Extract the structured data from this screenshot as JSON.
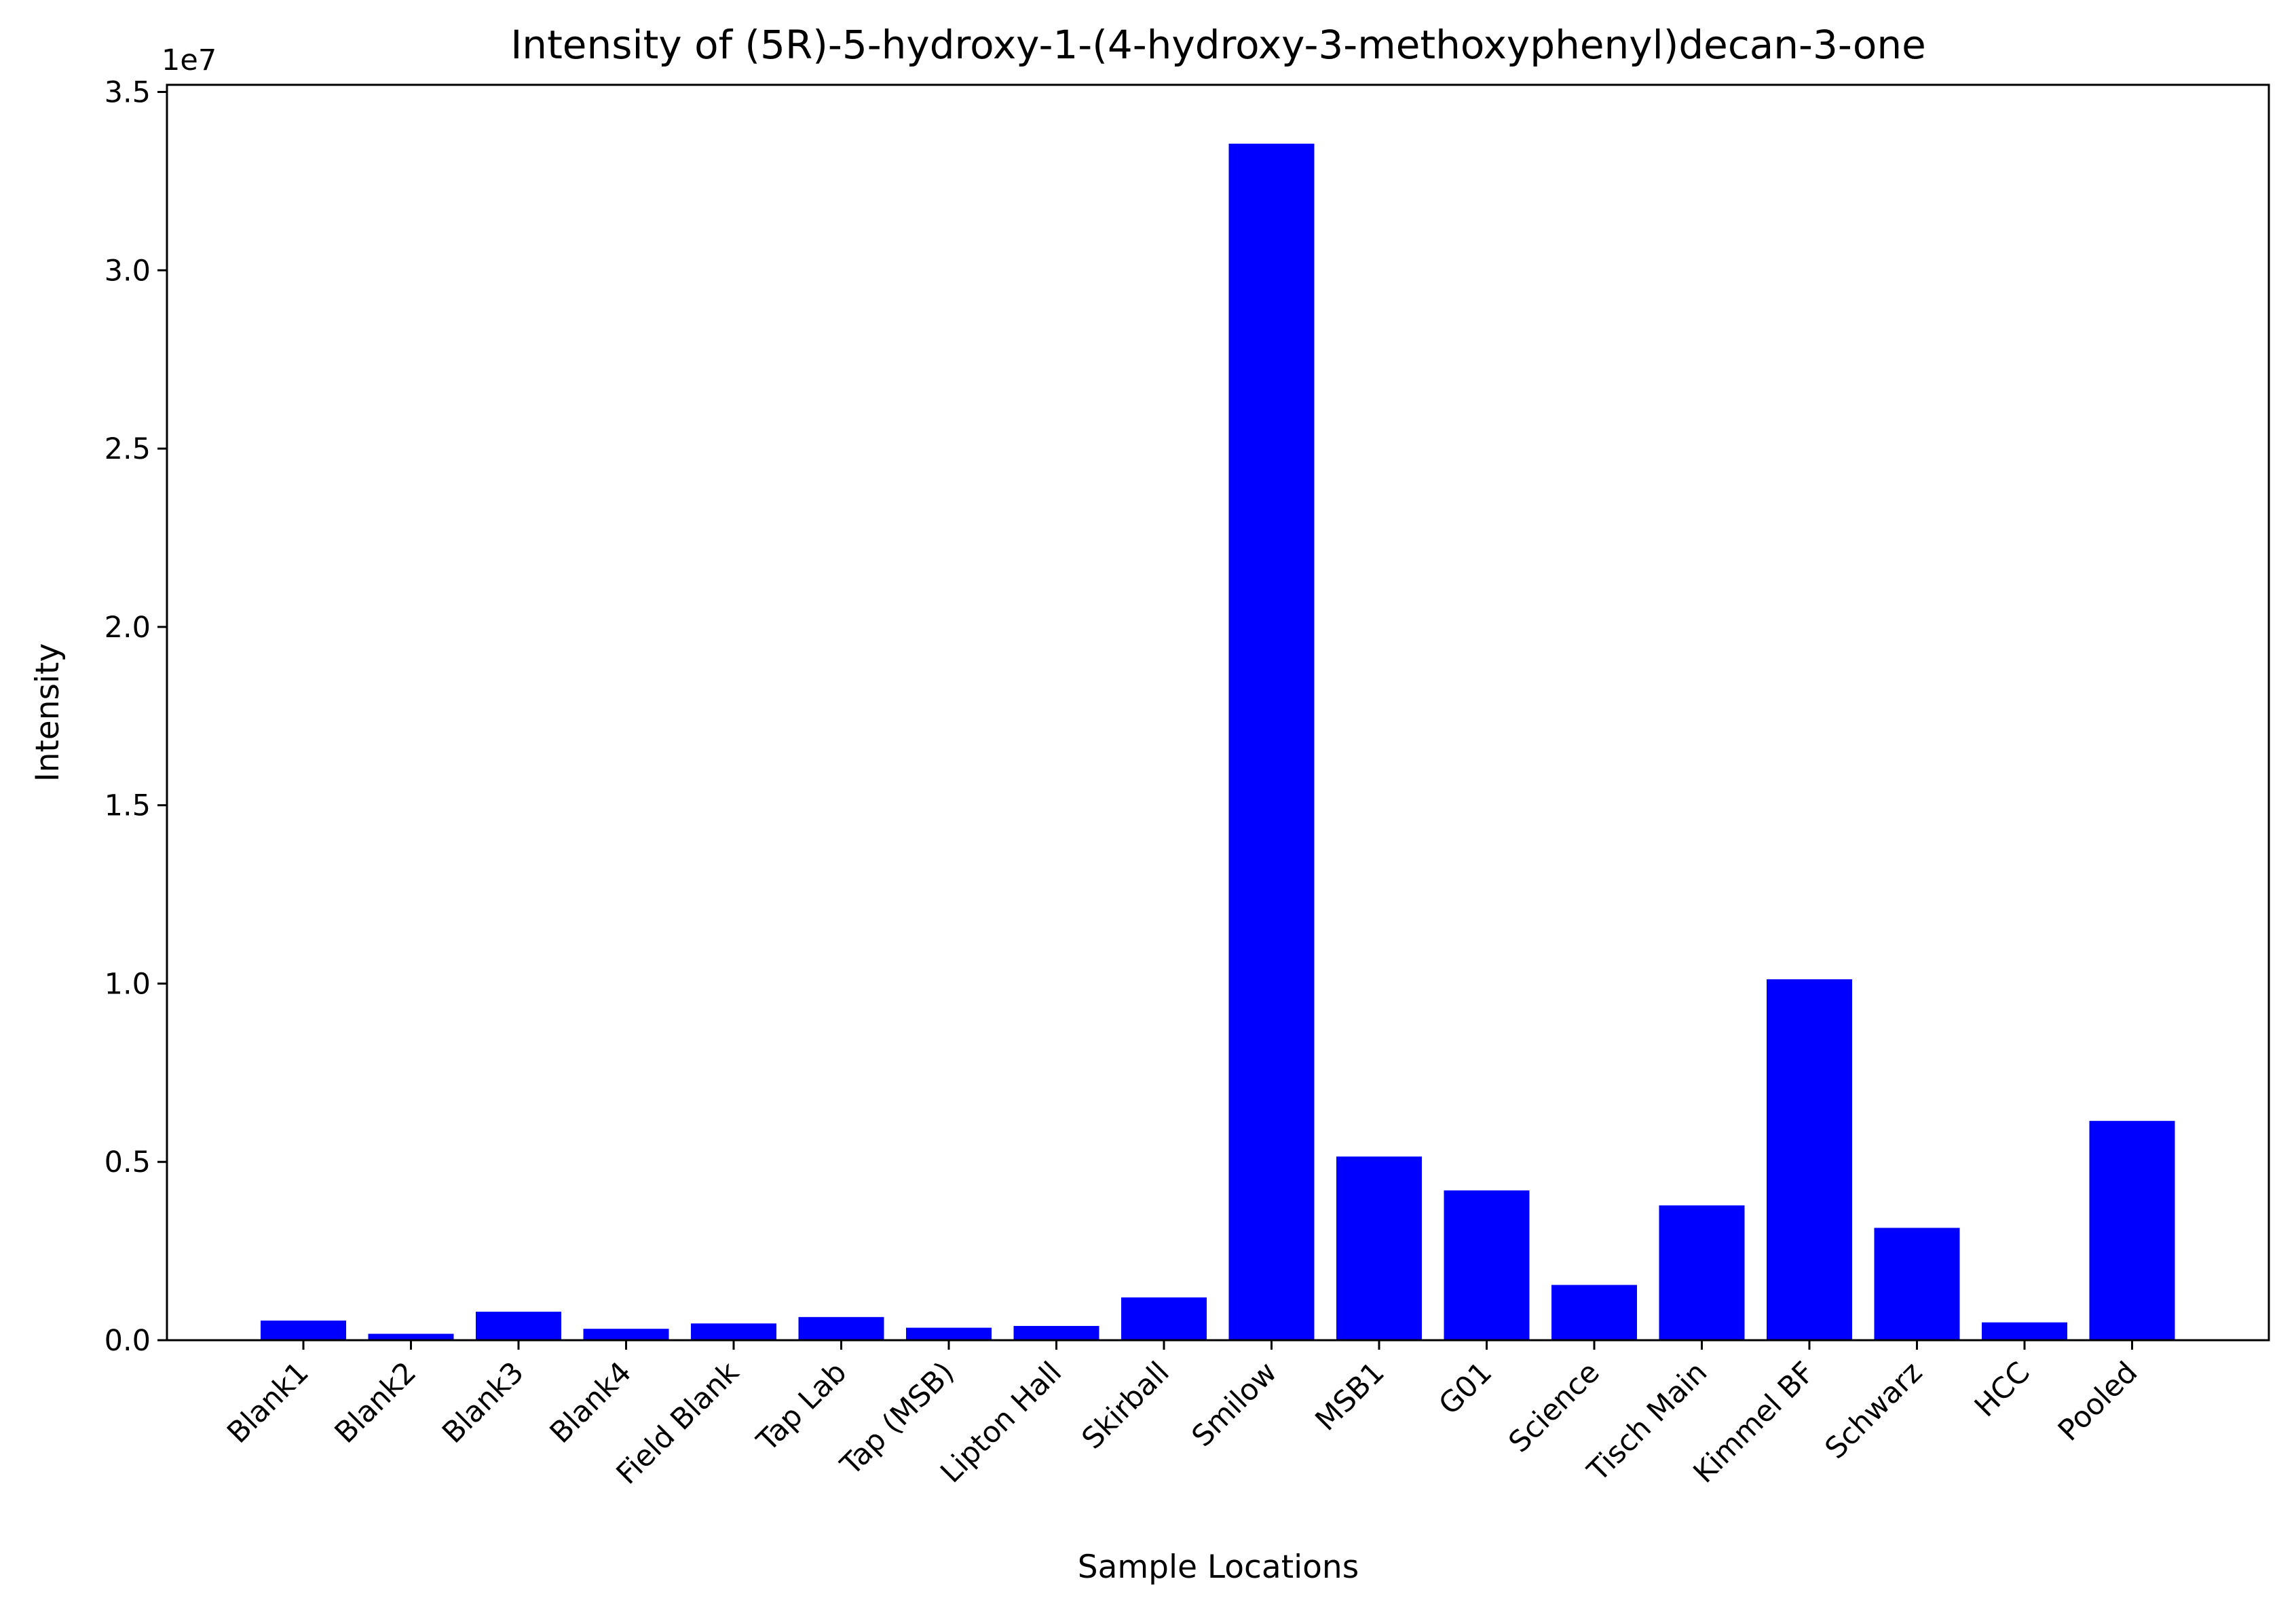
{
  "chart_data": {
    "type": "bar",
    "title": "Intensity of (5R)-5-hydroxy-1-(4-hydroxy-3-methoxyphenyl)decan-3-one",
    "xlabel": "Sample Locations",
    "ylabel": "Intensity",
    "y_offset_label": "1e7",
    "ylim": [
      0,
      3.52
    ],
    "yticks": [
      {
        "value": 0.0,
        "label": "0.0"
      },
      {
        "value": 0.5,
        "label": "0.5"
      },
      {
        "value": 1.0,
        "label": "1.0"
      },
      {
        "value": 1.5,
        "label": "1.5"
      },
      {
        "value": 2.0,
        "label": "2.0"
      },
      {
        "value": 2.5,
        "label": "2.5"
      },
      {
        "value": 3.0,
        "label": "3.0"
      },
      {
        "value": 3.5,
        "label": "3.5"
      }
    ],
    "categories": [
      "Blank1",
      "Blank2",
      "Blank3",
      "Blank4",
      "Field Blank",
      "Tap Lab",
      "Tap (MSB)",
      "Lipton Hall",
      "Skirball",
      "Smilow",
      "MSB1",
      "G01",
      "Science",
      "Tisch Main",
      "Kimmel BF",
      "Schwarz",
      "HCC",
      "Pooled"
    ],
    "values": [
      0.055,
      0.018,
      0.08,
      0.032,
      0.047,
      0.065,
      0.035,
      0.04,
      0.12,
      3.355,
      0.515,
      0.42,
      0.155,
      0.378,
      1.012,
      0.315,
      0.05,
      0.615
    ],
    "value_unit_multiplier": 10000000,
    "bar_color": "#0000ff",
    "grid": false,
    "legend": "none"
  }
}
